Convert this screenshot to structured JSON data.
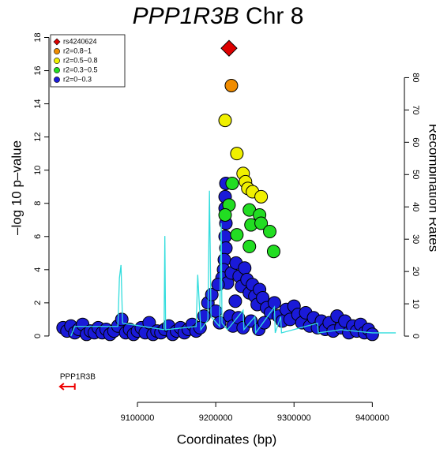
{
  "chart_data": {
    "type": "scatter",
    "title": [
      "PPP1R3B",
      "Chr 8"
    ],
    "x_label": "Coordinates (bp)",
    "y_label": "–log 10 p–value",
    "y2_label": "Recombination Rates",
    "xlim": [
      8987000,
      9441000
    ],
    "ylim": [
      -4,
      18.5
    ],
    "y2lim": [
      -20.5,
      95
    ],
    "xticks": [
      9100000,
      9200000,
      9300000,
      9400000
    ],
    "yticks": [
      0,
      2,
      4,
      6,
      8,
      10,
      12,
      14,
      16,
      18
    ],
    "y2ticks": [
      0,
      10,
      20,
      30,
      40,
      50,
      60,
      70,
      80
    ],
    "legend": "top-left",
    "series": [
      {
        "name": "rs4240624",
        "color": "#dd0000",
        "marker": "diamond",
        "x": [
          9217000
        ],
        "values": [
          17.35
        ]
      },
      {
        "name": "r2=0.8−1",
        "color": "#f08c00",
        "marker": "circle",
        "x": [
          9220000
        ],
        "values": [
          15.1
        ]
      },
      {
        "name": "r2=0.5−0.8",
        "color": "#f0f000",
        "marker": "circle",
        "x": [
          9212000,
          9227000,
          9235000,
          9238000,
          9241000,
          9247000,
          9258000
        ],
        "values": [
          13.0,
          11.0,
          9.8,
          9.3,
          8.9,
          8.7,
          8.4
        ]
      },
      {
        "name": "r2=0.3−0.5",
        "color": "#22dd22",
        "marker": "circle",
        "x": [
          9221000,
          9217000,
          9212000,
          9243000,
          9256000,
          9245000,
          9258000,
          9269000,
          9243000,
          9274000,
          9227000
        ],
        "values": [
          9.2,
          7.9,
          7.3,
          7.6,
          7.3,
          6.7,
          6.8,
          6.3,
          5.4,
          5.1,
          6.1
        ]
      },
      {
        "name": "r2=0−0.3",
        "color": "#1a1ad8",
        "marker": "circle",
        "x": [
          9213000,
          9212000,
          9212000,
          9213000,
          9212000,
          9213000,
          9211000,
          9210000,
          9208000,
          9215000,
          9220000,
          9226000,
          9230000,
          9233000,
          9237000,
          9240000,
          9243000,
          9247000,
          9250000,
          9253000,
          9256000,
          9260000,
          9265000,
          9270000,
          9275000,
          9280000,
          9285000,
          9290000,
          9295000,
          9300000,
          9305000,
          9310000,
          9315000,
          9320000,
          9325000,
          9330000,
          9335000,
          9340000,
          9345000,
          9350000,
          9355000,
          9360000,
          9365000,
          9370000,
          9375000,
          9380000,
          9385000,
          9390000,
          9395000,
          9400000,
          9005000,
          9010000,
          9015000,
          9020000,
          9025000,
          9030000,
          9035000,
          9040000,
          9045000,
          9050000,
          9055000,
          9060000,
          9065000,
          9070000,
          9075000,
          9080000,
          9085000,
          9090000,
          9095000,
          9100000,
          9105000,
          9110000,
          9115000,
          9120000,
          9125000,
          9130000,
          9135000,
          9140000,
          9145000,
          9150000,
          9155000,
          9160000,
          9165000,
          9170000,
          9175000,
          9180000,
          9185000,
          9190000,
          9195000,
          9200000,
          9203000,
          9205000,
          9218000,
          9222000,
          9225000,
          9229000,
          9235000,
          9245000,
          9255000,
          9262000
        ],
        "values": [
          9.2,
          8.4,
          7.7,
          6.8,
          6.0,
          5.3,
          4.6,
          4.0,
          3.5,
          3.2,
          3.8,
          4.4,
          3.6,
          3.0,
          4.1,
          3.4,
          2.6,
          3.1,
          2.4,
          1.9,
          2.8,
          2.3,
          1.7,
          1.4,
          2.0,
          1.2,
          0.9,
          1.6,
          1.0,
          1.8,
          1.3,
          0.8,
          1.4,
          0.6,
          1.1,
          0.5,
          0.9,
          0.4,
          0.8,
          0.3,
          1.2,
          0.5,
          0.9,
          0.2,
          0.6,
          0.3,
          0.7,
          0.2,
          0.4,
          0.1,
          0.5,
          0.3,
          0.6,
          0.2,
          0.4,
          0.7,
          0.1,
          0.3,
          0.2,
          0.5,
          0.2,
          0.4,
          0.1,
          0.3,
          0.6,
          1.0,
          0.2,
          0.4,
          0.1,
          0.3,
          0.5,
          0.2,
          0.8,
          0.1,
          0.3,
          0.2,
          0.4,
          0.6,
          0.1,
          0.3,
          0.5,
          0.2,
          0.4,
          0.7,
          0.3,
          0.5,
          1.2,
          2.0,
          2.5,
          1.5,
          3.1,
          0.8,
          1.2,
          0.6,
          2.1,
          1.1,
          0.5,
          0.9,
          0.4,
          0.8
        ]
      }
    ],
    "recombination": {
      "color": "#33dddd",
      "axis": "y2",
      "x": [
        9015000,
        9020000,
        9075000,
        9077000,
        9079000,
        9081000,
        9134000,
        9135000,
        9136000,
        9175000,
        9177000,
        9179000,
        9181000,
        9190000,
        9192000,
        9194000,
        9205000,
        9207000,
        9208000,
        9215000,
        9235000,
        9236000,
        9250000,
        9251000,
        9275000,
        9276000,
        9283000,
        9284000,
        9330000,
        9331000,
        9360000,
        9400000,
        9430000
      ],
      "values": [
        0,
        3,
        3,
        18,
        22,
        4,
        2,
        31,
        2,
        3,
        19,
        10,
        2,
        5,
        45,
        6,
        3,
        35,
        4,
        2,
        8,
        2,
        6,
        1,
        9,
        1,
        6,
        1,
        4,
        1,
        2,
        1,
        1
      ]
    },
    "genes": [
      {
        "name": "PPP1R3B",
        "start": 9001000,
        "end": 9020000,
        "color": "#ee0000"
      }
    ]
  }
}
